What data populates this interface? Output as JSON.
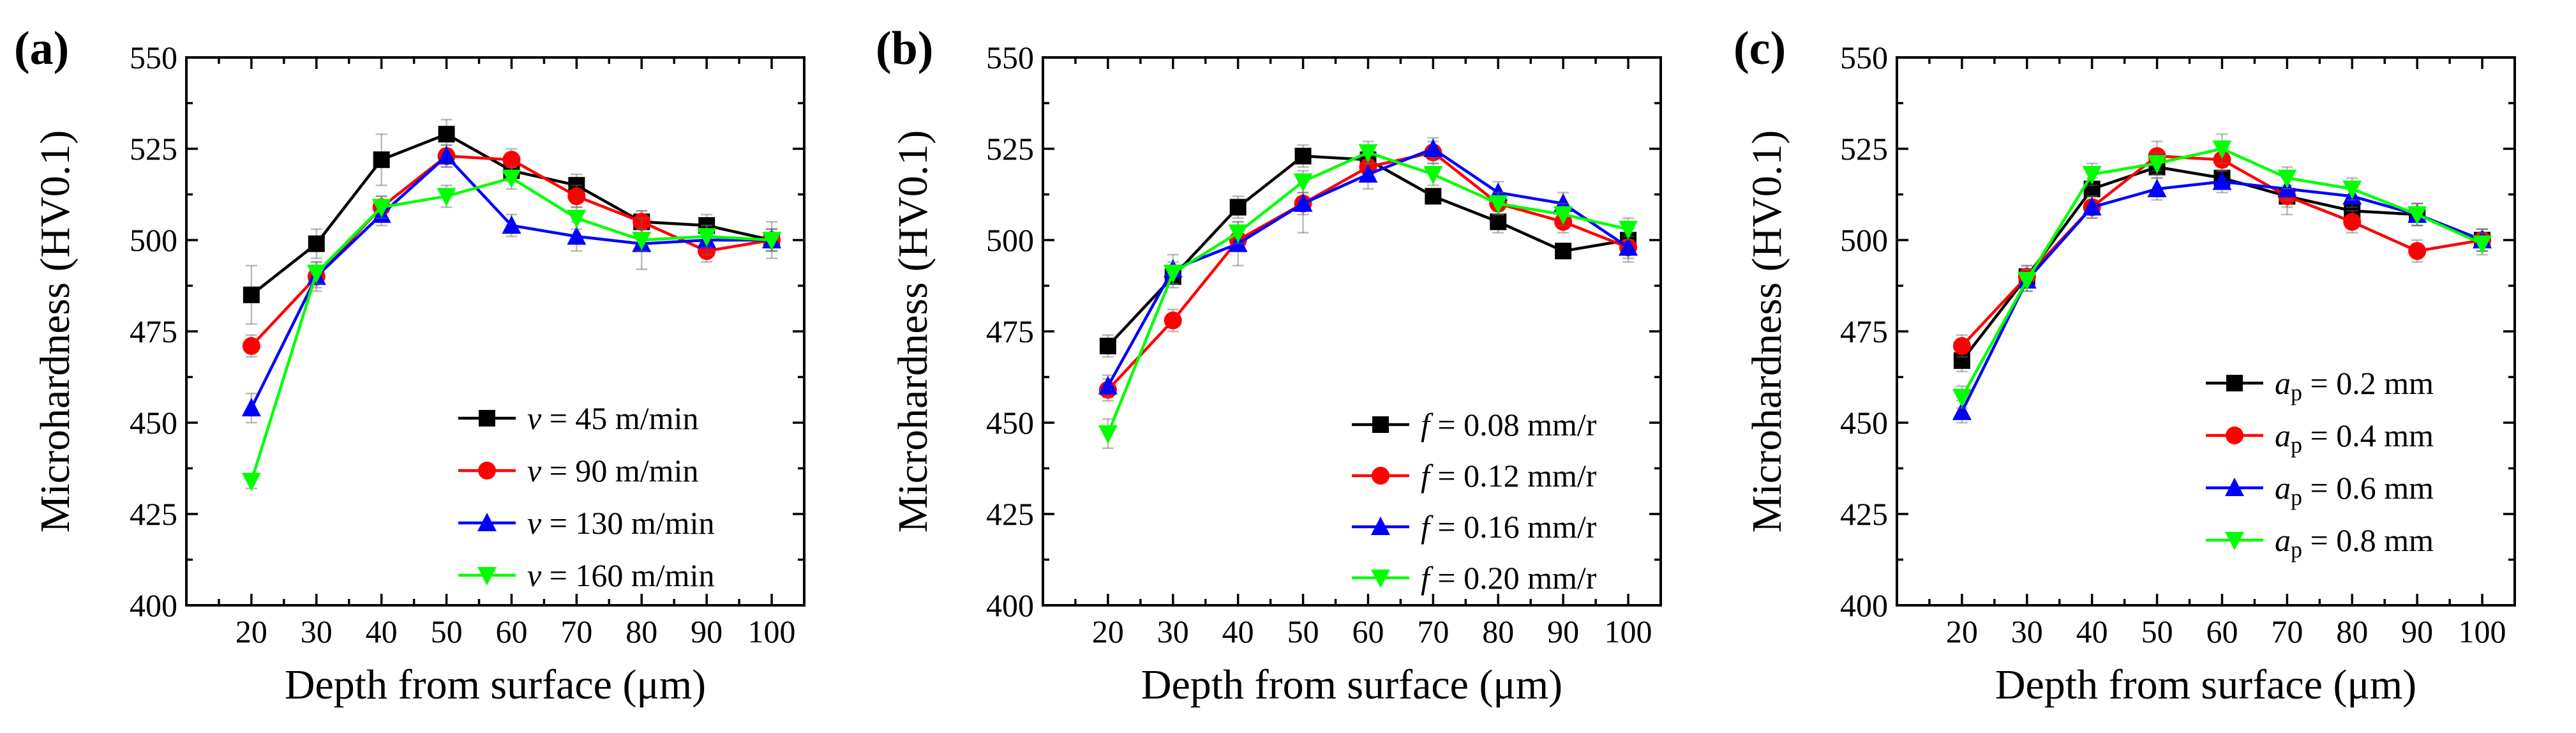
{
  "chart_data": [
    {
      "type": "line",
      "panel_label": "(a)",
      "ylabel": "Microhardness (HV0.1)",
      "xlabel": "Depth from surface (μm)",
      "x": [
        20,
        30,
        40,
        50,
        60,
        70,
        80,
        90,
        100
      ],
      "x_ticks": [
        "20",
        "30",
        "40",
        "50",
        "60",
        "70",
        "80",
        "90",
        "100"
      ],
      "xlim": [
        10,
        105
      ],
      "ylim": [
        400,
        550
      ],
      "y_ticks": [
        "400",
        "425",
        "450",
        "475",
        "500",
        "525",
        "550"
      ],
      "legend_position": "bottom-right",
      "series": [
        {
          "name": "v = 45 m/min",
          "legend_var": "v",
          "legend_rest": " = 45 m/min",
          "color": "#000000",
          "marker": "square",
          "values": [
            485,
            499,
            522,
            529,
            519,
            515,
            505,
            504,
            500
          ],
          "errors": [
            8,
            4,
            7,
            4,
            3,
            3,
            3,
            3,
            3
          ]
        },
        {
          "name": "v = 90 m/min",
          "legend_var": "v",
          "legend_rest": " = 90 m/min",
          "color": "#ff0000",
          "marker": "circle",
          "values": [
            471,
            490,
            509,
            523,
            522,
            512,
            505,
            497,
            500
          ],
          "errors": [
            3,
            4,
            3,
            3,
            3,
            3,
            3,
            3,
            3
          ]
        },
        {
          "name": "v = 130 m/min",
          "legend_var": "v",
          "legend_rest": " = 130 m/min",
          "color": "#0000ff",
          "marker": "triangle-up",
          "values": [
            454,
            490,
            507,
            523,
            504,
            501,
            499,
            500,
            500
          ],
          "errors": [
            4,
            3,
            3,
            3,
            3,
            4,
            7,
            4,
            5
          ]
        },
        {
          "name": "v = 160 m/min",
          "legend_var": "v",
          "legend_rest": " = 160 m/min",
          "color": "#00ff00",
          "marker": "triangle-down",
          "values": [
            434,
            491,
            509,
            512,
            517,
            506,
            500,
            501,
            500
          ],
          "errors": [
            2,
            3,
            3,
            3,
            3,
            3,
            3,
            3,
            3
          ]
        }
      ]
    },
    {
      "type": "line",
      "panel_label": "(b)",
      "ylabel": "Microhardness (HV0.1)",
      "xlabel": "Depth from surface (μm)",
      "x": [
        20,
        30,
        40,
        50,
        60,
        70,
        80,
        90,
        100
      ],
      "x_ticks": [
        "20",
        "30",
        "40",
        "50",
        "60",
        "70",
        "80",
        "90",
        "100"
      ],
      "xlim": [
        10,
        105
      ],
      "ylim": [
        400,
        550
      ],
      "y_ticks": [
        "400",
        "425",
        "450",
        "475",
        "500",
        "525",
        "550"
      ],
      "legend_position": "bottom-right",
      "series": [
        {
          "name": "f = 0.08 mm/r",
          "legend_var": "f",
          "legend_rest": " = 0.08 mm/r",
          "color": "#000000",
          "marker": "square",
          "values": [
            471,
            490,
            509,
            523,
            522,
            512,
            505,
            497,
            500
          ],
          "errors": [
            3,
            3,
            3,
            3,
            3,
            2,
            3,
            2,
            3
          ]
        },
        {
          "name": "f = 0.12 mm/r",
          "legend_var": "f",
          "legend_rest": " = 0.12 mm/r",
          "color": "#ff0000",
          "marker": "circle",
          "values": [
            459,
            478,
            500,
            510,
            520,
            524,
            510,
            505,
            498
          ],
          "errors": [
            3,
            3,
            3,
            3,
            3,
            3,
            3,
            3,
            3
          ]
        },
        {
          "name": "f = 0.16 mm/r",
          "legend_var": "f",
          "legend_rest": " = 0.16 mm/r",
          "color": "#0000ff",
          "marker": "triangle-up",
          "values": [
            460,
            492,
            499,
            510,
            518,
            525,
            513,
            510,
            498
          ],
          "errors": [
            3,
            4,
            6,
            8,
            4,
            3,
            3,
            3,
            4
          ]
        },
        {
          "name": "f = 0.20 mm/r",
          "legend_var": "f",
          "legend_rest": " = 0.20 mm/r",
          "color": "#00ff00",
          "marker": "triangle-down",
          "values": [
            447,
            491,
            502,
            516,
            524,
            518,
            510,
            507,
            503
          ],
          "errors": [
            4,
            3,
            3,
            3,
            3,
            3,
            3,
            3,
            3
          ]
        }
      ]
    },
    {
      "type": "line",
      "panel_label": "(c)",
      "ylabel": "Microhardness (HV0.1)",
      "xlabel": "Depth from surface (μm)",
      "x": [
        20,
        30,
        40,
        50,
        60,
        70,
        80,
        90,
        100
      ],
      "x_ticks": [
        "20",
        "30",
        "40",
        "50",
        "60",
        "70",
        "80",
        "90",
        "100"
      ],
      "xlim": [
        10,
        105
      ],
      "ylim": [
        400,
        550
      ],
      "y_ticks": [
        "400",
        "425",
        "450",
        "475",
        "500",
        "525",
        "550"
      ],
      "legend_position": "bottom-right",
      "series": [
        {
          "name": "ap = 0.2 mm",
          "legend_var": "a",
          "legend_sub": "p",
          "legend_rest": " = 0.2 mm",
          "color": "#000000",
          "marker": "square",
          "values": [
            467,
            490,
            514,
            520,
            517,
            512,
            508,
            507,
            500
          ],
          "errors": [
            3,
            3,
            3,
            3,
            3,
            3,
            3,
            3,
            3
          ]
        },
        {
          "name": "ap = 0.4 mm",
          "legend_var": "a",
          "legend_sub": "p",
          "legend_rest": " = 0.4 mm",
          "color": "#ff0000",
          "marker": "circle",
          "values": [
            471,
            490,
            509,
            523,
            522,
            512,
            505,
            497,
            500
          ],
          "errors": [
            3,
            3,
            3,
            4,
            3,
            5,
            3,
            3,
            3
          ]
        },
        {
          "name": "ap = 0.6 mm",
          "legend_var": "a",
          "legend_sub": "p",
          "legend_rest": " = 0.6 mm",
          "color": "#0000ff",
          "marker": "triangle-up",
          "values": [
            453,
            489,
            509,
            514,
            516,
            514,
            512,
            507,
            500
          ],
          "errors": [
            3,
            3,
            3,
            3,
            3,
            3,
            3,
            3,
            3
          ]
        },
        {
          "name": "ap = 0.8 mm",
          "legend_var": "a",
          "legend_sub": "p",
          "legend_rest": " = 0.8 mm",
          "color": "#00ff00",
          "marker": "triangle-down",
          "values": [
            457,
            489,
            518,
            521,
            525,
            517,
            514,
            507,
            499
          ],
          "errors": [
            3,
            3,
            3,
            3,
            4,
            3,
            3,
            3,
            3
          ]
        }
      ]
    }
  ]
}
